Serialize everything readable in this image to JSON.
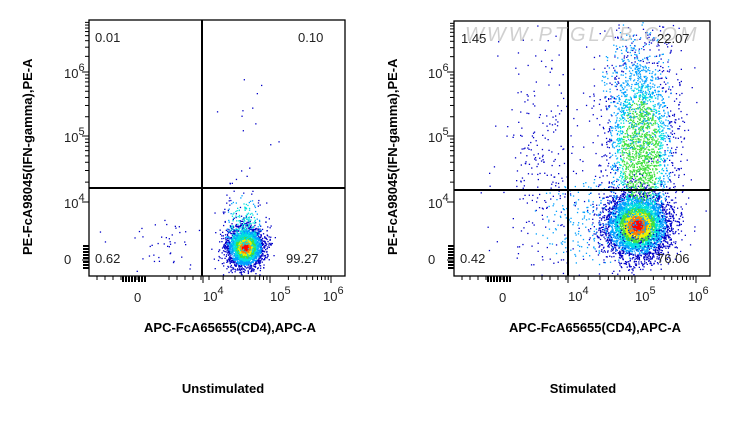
{
  "chart_data": [
    {
      "type": "scatter",
      "subtype": "flow-cytometry-density-dot-plot",
      "title": "Unstimulated",
      "xlabel": "APC-FcA65655(CD4),APC-A",
      "ylabel": "PE-FcA98045(IFN-gamma),PE-A",
      "x_scale": "biexponential",
      "y_scale": "biexponential",
      "x_ticks": [
        "0",
        "10^4",
        "10^5",
        "10^6"
      ],
      "y_ticks": [
        "0",
        "10^4",
        "10^5",
        "10^6"
      ],
      "quadrant_gate": {
        "x": 10000,
        "y": 14000
      },
      "quadrants": {
        "upper_left": "0.01",
        "upper_right": "0.10",
        "lower_left": "0.62",
        "lower_right": "99.27"
      },
      "populations": [
        {
          "name": "main cluster (CD4+ IFN-gamma-)",
          "x_center": 35000,
          "y_center": 2500,
          "quadrant": "lower_right"
        }
      ]
    },
    {
      "type": "scatter",
      "subtype": "flow-cytometry-density-dot-plot",
      "title": "Stimulated",
      "xlabel": "APC-FcA65655(CD4),APC-A",
      "ylabel": "PE-FcA98045(IFN-gamma),PE-A",
      "x_scale": "biexponential",
      "y_scale": "biexponential",
      "x_ticks": [
        "0",
        "10^4",
        "10^5",
        "10^6"
      ],
      "y_ticks": [
        "0",
        "10^4",
        "10^5",
        "10^6"
      ],
      "quadrant_gate": {
        "x": 10000,
        "y": 14000
      },
      "quadrants": {
        "upper_left": "1.45",
        "upper_right": "22.07",
        "lower_left": "0.42",
        "lower_right": "76.06"
      },
      "populations": [
        {
          "name": "main cluster (CD4+ IFN-gamma-)",
          "x_center": 80000,
          "y_center": 4000,
          "quadrant": "lower_right"
        },
        {
          "name": "IFN-gamma+ tail (CD4+ IFN-gamma+)",
          "x_center": 90000,
          "y_center": 100000,
          "quadrant": "upper_right"
        }
      ]
    }
  ],
  "panels": [
    {
      "caption": "Unstimulated",
      "xlabel": "APC-FcA65655(CD4),APC-A",
      "ylabel": "PE-FcA98045(IFN-gamma),PE-A",
      "xticks": {
        "t0": "0",
        "t4": "10",
        "t4e": "4",
        "t5": "10",
        "t5e": "5",
        "t6": "10",
        "t6e": "6"
      },
      "yticks": {
        "t0": "0",
        "t4": "10",
        "t4e": "4",
        "t5": "10",
        "t5e": "5",
        "t6": "10",
        "t6e": "6"
      },
      "q": {
        "ul": "0.01",
        "ur": "0.10",
        "ll": "0.62",
        "lr": "99.27"
      }
    },
    {
      "caption": "Stimulated",
      "xlabel": "APC-FcA65655(CD4),APC-A",
      "ylabel": "PE-FcA98045(IFN-gamma),PE-A",
      "xticks": {
        "t0": "0",
        "t4": "10",
        "t4e": "4",
        "t5": "10",
        "t5e": "5",
        "t6": "10",
        "t6e": "6"
      },
      "yticks": {
        "t0": "0",
        "t4": "10",
        "t4e": "4",
        "t5": "10",
        "t5e": "5",
        "t6": "10",
        "t6e": "6"
      },
      "q": {
        "ul": "1.45",
        "ur": "22.07",
        "ll": "0.42",
        "lr": "76.06"
      },
      "watermark": "WWW.PTGLAB.COM"
    }
  ],
  "colors": {
    "axis": "#000000",
    "density": [
      "#0000c8",
      "#00a0ff",
      "#00e0e0",
      "#40e040",
      "#f0f000",
      "#ff8000",
      "#ff0000"
    ]
  }
}
